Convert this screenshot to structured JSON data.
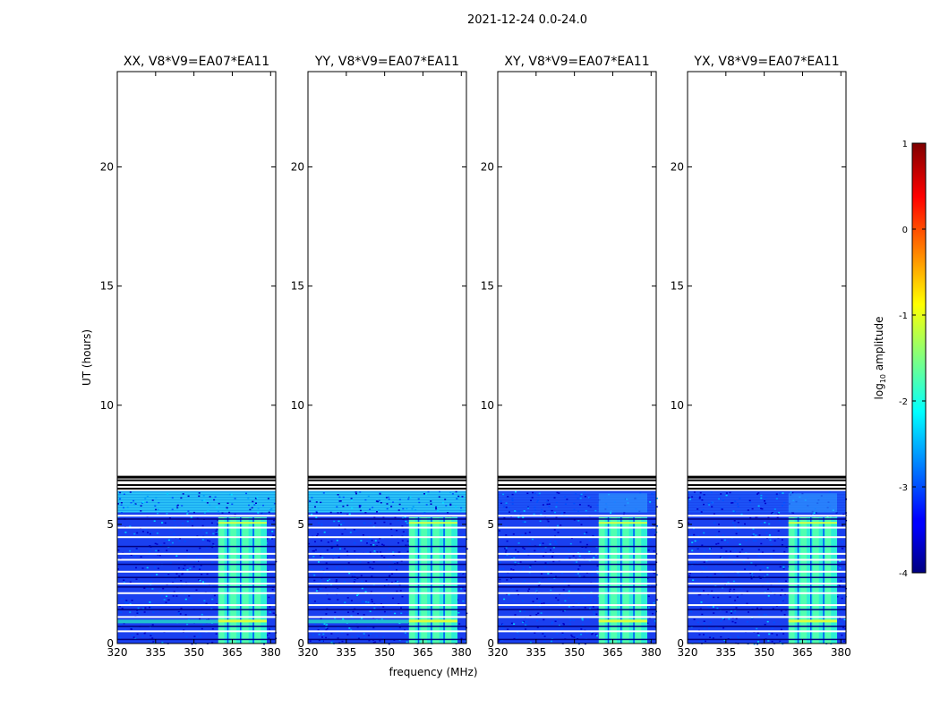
{
  "figure": {
    "suptitle": "2021-12-24 0.0-24.0",
    "colorbar": {
      "label": "log10 amplitude",
      "label_base": "log",
      "label_sub": "10",
      "label_rest": " amplitude",
      "ticks": [
        1,
        0,
        -1,
        -2,
        -3,
        -4
      ],
      "range": [
        -4,
        1
      ],
      "colormap": "jet"
    }
  },
  "chart_data": [
    {
      "type": "heatmap",
      "title": "XX, V8*V9=EA07*EA11",
      "xlabel": "",
      "ylabel": "UT (hours)",
      "xlim": [
        320,
        382
      ],
      "ylim": [
        0,
        24
      ],
      "xticks": [
        320,
        335,
        350,
        365,
        380
      ],
      "yticks": [
        0,
        5,
        10,
        15,
        20
      ],
      "data_extent_hours": [
        0,
        6.4
      ],
      "rfi_band_mhz": [
        359.5,
        378.5
      ],
      "upper_band": "cyan"
    },
    {
      "type": "heatmap",
      "title": "YY, V8*V9=EA07*EA11",
      "xlabel": "frequency (MHz)",
      "ylabel": "",
      "xlim": [
        320,
        382
      ],
      "ylim": [
        0,
        24
      ],
      "xticks": [
        320,
        335,
        350,
        365,
        380
      ],
      "yticks": [
        0,
        5,
        10,
        15,
        20
      ],
      "data_extent_hours": [
        0,
        6.4
      ],
      "rfi_band_mhz": [
        359.5,
        378.5
      ],
      "upper_band": "cyan"
    },
    {
      "type": "heatmap",
      "title": "XY, V8*V9=EA07*EA11",
      "xlabel": "",
      "ylabel": "",
      "xlim": [
        320,
        382
      ],
      "ylim": [
        0,
        24
      ],
      "xticks": [
        320,
        335,
        350,
        365,
        380
      ],
      "yticks": [
        0,
        5,
        10,
        15,
        20
      ],
      "data_extent_hours": [
        0,
        6.4
      ],
      "rfi_band_mhz": [
        359.5,
        378.5
      ],
      "upper_band": "blue"
    },
    {
      "type": "heatmap",
      "title": "YX, V8*V9=EA07*EA11",
      "xlabel": "",
      "ylabel": "",
      "xlim": [
        320,
        382
      ],
      "ylim": [
        0,
        24
      ],
      "xticks": [
        320,
        335,
        350,
        365,
        380
      ],
      "yticks": [
        0,
        5,
        10,
        15,
        20
      ],
      "data_extent_hours": [
        0,
        6.4
      ],
      "rfi_band_mhz": [
        359.5,
        378.5
      ],
      "upper_band": "blue"
    }
  ]
}
